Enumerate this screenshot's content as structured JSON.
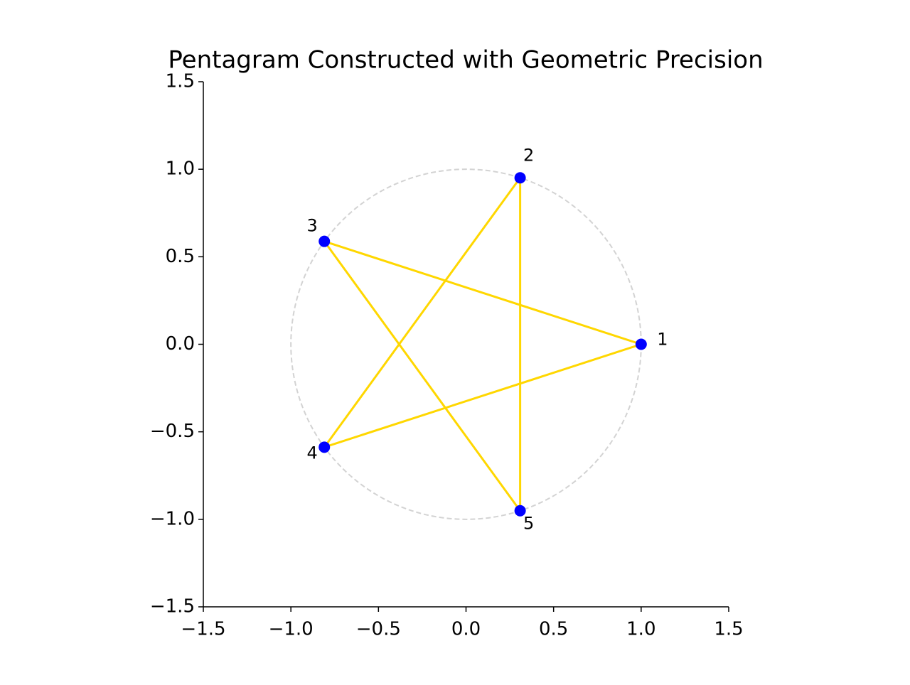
{
  "chart_data": {
    "type": "line",
    "title": "Pentagram Constructed with Geometric Precision",
    "xlim": [
      -1.5,
      1.5
    ],
    "ylim": [
      -1.5,
      1.5
    ],
    "xticks": [
      {
        "value": -1.5,
        "label": "−1.5"
      },
      {
        "value": -1.0,
        "label": "−1.0"
      },
      {
        "value": -0.5,
        "label": "−0.5"
      },
      {
        "value": 0,
        "label": "0.0"
      },
      0.5,
      {
        "value": 1.0,
        "label": "1.0"
      },
      1.5
    ],
    "yticks": [
      {
        "value": -1.5,
        "label": "−1.5"
      },
      {
        "value": -1.0,
        "label": "−1.0"
      },
      {
        "value": -0.5,
        "label": "−0.5"
      },
      {
        "value": 0,
        "label": "0.0"
      },
      0.5,
      {
        "value": 1.0,
        "label": "1.0"
      },
      1.5
    ],
    "circle": {
      "radius": 1,
      "color": "#d3d3d3"
    },
    "series": [
      {
        "color": "#ffd700",
        "x": [
          1,
          -0.809,
          0.309,
          0.309,
          -0.809,
          1
        ],
        "y": [
          0,
          0.588,
          -0.951,
          0.951,
          -0.588,
          0
        ]
      }
    ],
    "points": {
      "color": "#0000ff",
      "x": [
        1,
        0.309,
        -0.809,
        -0.809,
        0.309
      ],
      "y": [
        0,
        0.951,
        0.588,
        -0.588,
        -0.951
      ],
      "labels": [
        "1",
        "2",
        "3",
        "4",
        "5"
      ]
    }
  }
}
